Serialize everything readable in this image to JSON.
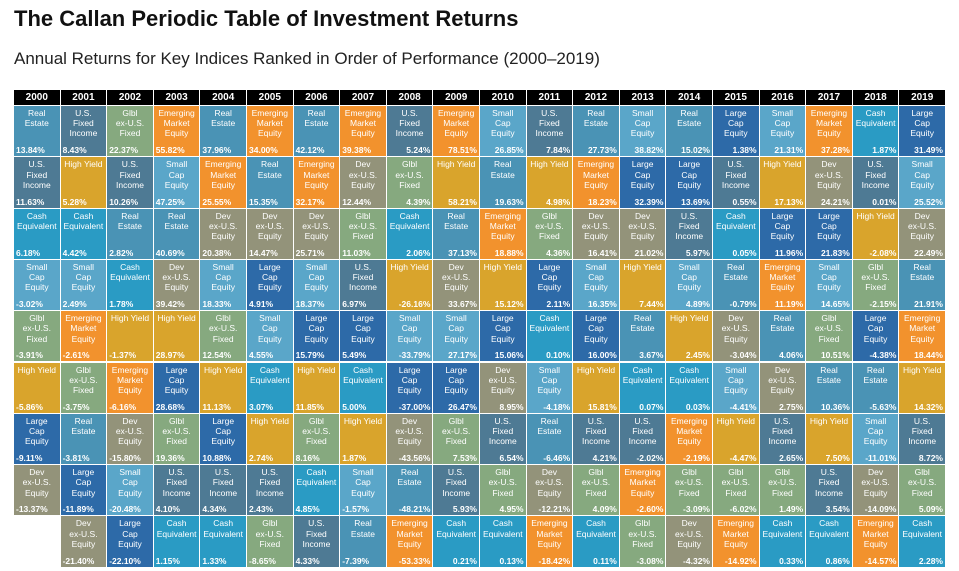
{
  "header": {
    "title": "The Callan Periodic Table of Investment Returns",
    "subtitle": "Annual Returns for Key Indices Ranked in Order of Performance (2000–2019)"
  },
  "asset_classes": {
    "RE": {
      "label": "Real Estate",
      "color": "#4a93b5"
    },
    "USFI": {
      "label": "U.S. Fixed Income",
      "color": "#4e7a94"
    },
    "GFI": {
      "label": "Glbl ex-U.S. Fixed",
      "color": "#86a97f"
    },
    "EM": {
      "label": "Emerging Market Equity",
      "color": "#f2922d"
    },
    "SC": {
      "label": "Small Cap Equity",
      "color": "#5aa6c9"
    },
    "LC": {
      "label": "Large Cap Equity",
      "color": "#2d6aa8"
    },
    "HY": {
      "label": "High Yield",
      "color": "#d9a42c"
    },
    "DX": {
      "label": "Dev ex-U.S. Equity",
      "color": "#93937a"
    },
    "CE": {
      "label": "Cash Equivalent",
      "color": "#2a9bc4"
    }
  },
  "chart_data": {
    "type": "table",
    "title": "The Callan Periodic Table of Investment Returns",
    "subtitle": "Annual Returns for Key Indices Ranked in Order of Performance (2000–2019)",
    "years": [
      "2000",
      "2001",
      "2002",
      "2003",
      "2004",
      "2005",
      "2006",
      "2007",
      "2008",
      "2009",
      "2010",
      "2011",
      "2012",
      "2013",
      "2014",
      "2015",
      "2016",
      "2017",
      "2018",
      "2019"
    ],
    "columns": [
      [
        {
          "a": "RE",
          "r": "13.84%"
        },
        {
          "a": "USFI",
          "r": "11.63%"
        },
        {
          "a": "CE",
          "r": "6.18%"
        },
        {
          "a": "SC",
          "r": "-3.02%"
        },
        {
          "a": "GFI",
          "r": "-3.91%"
        },
        {
          "a": "HY",
          "r": "-5.86%"
        },
        {
          "a": "LC",
          "r": "-9.11%"
        },
        {
          "a": "DX",
          "r": "-13.37%"
        }
      ],
      [
        {
          "a": "USFI",
          "r": "8.43%"
        },
        {
          "a": "HY",
          "r": "5.28%"
        },
        {
          "a": "CE",
          "r": "4.42%"
        },
        {
          "a": "SC",
          "r": "2.49%"
        },
        {
          "a": "EM",
          "r": "-2.61%"
        },
        {
          "a": "GFI",
          "r": "-3.75%"
        },
        {
          "a": "RE",
          "r": "-3.81%"
        },
        {
          "a": "LC",
          "r": "-11.89%"
        },
        {
          "a": "DX",
          "r": "-21.40%"
        }
      ],
      [
        {
          "a": "GFI",
          "r": "22.37%"
        },
        {
          "a": "USFI",
          "r": "10.26%"
        },
        {
          "a": "RE",
          "r": "2.82%"
        },
        {
          "a": "CE",
          "r": "1.78%"
        },
        {
          "a": "HY",
          "r": "-1.37%"
        },
        {
          "a": "EM",
          "r": "-6.16%"
        },
        {
          "a": "DX",
          "r": "-15.80%"
        },
        {
          "a": "SC",
          "r": "-20.48%"
        },
        {
          "a": "LC",
          "r": "-22.10%"
        }
      ],
      [
        {
          "a": "EM",
          "r": "55.82%"
        },
        {
          "a": "SC",
          "r": "47.25%"
        },
        {
          "a": "RE",
          "r": "40.69%"
        },
        {
          "a": "DX",
          "r": "39.42%"
        },
        {
          "a": "HY",
          "r": "28.97%"
        },
        {
          "a": "LC",
          "r": "28.68%"
        },
        {
          "a": "GFI",
          "r": "19.36%"
        },
        {
          "a": "USFI",
          "r": "4.10%"
        },
        {
          "a": "CE",
          "r": "1.15%"
        }
      ],
      [
        {
          "a": "RE",
          "r": "37.96%"
        },
        {
          "a": "EM",
          "r": "25.55%"
        },
        {
          "a": "DX",
          "r": "20.38%"
        },
        {
          "a": "SC",
          "r": "18.33%"
        },
        {
          "a": "GFI",
          "r": "12.54%"
        },
        {
          "a": "HY",
          "r": "11.13%"
        },
        {
          "a": "LC",
          "r": "10.88%"
        },
        {
          "a": "USFI",
          "r": "4.34%"
        },
        {
          "a": "CE",
          "r": "1.33%"
        }
      ],
      [
        {
          "a": "EM",
          "r": "34.00%"
        },
        {
          "a": "RE",
          "r": "15.35%"
        },
        {
          "a": "DX",
          "r": "14.47%"
        },
        {
          "a": "LC",
          "r": "4.91%"
        },
        {
          "a": "SC",
          "r": "4.55%"
        },
        {
          "a": "CE",
          "r": "3.07%"
        },
        {
          "a": "HY",
          "r": "2.74%"
        },
        {
          "a": "USFI",
          "r": "2.43%"
        },
        {
          "a": "GFI",
          "r": "-8.65%"
        }
      ],
      [
        {
          "a": "RE",
          "r": "42.12%"
        },
        {
          "a": "EM",
          "r": "32.17%"
        },
        {
          "a": "DX",
          "r": "25.71%"
        },
        {
          "a": "SC",
          "r": "18.37%"
        },
        {
          "a": "LC",
          "r": "15.79%"
        },
        {
          "a": "HY",
          "r": "11.85%"
        },
        {
          "a": "GFI",
          "r": "8.16%"
        },
        {
          "a": "CE",
          "r": "4.85%"
        },
        {
          "a": "USFI",
          "r": "4.33%"
        }
      ],
      [
        {
          "a": "EM",
          "r": "39.38%"
        },
        {
          "a": "DX",
          "r": "12.44%"
        },
        {
          "a": "GFI",
          "r": "11.03%"
        },
        {
          "a": "USFI",
          "r": "6.97%"
        },
        {
          "a": "LC",
          "r": "5.49%"
        },
        {
          "a": "CE",
          "r": "5.00%"
        },
        {
          "a": "HY",
          "r": "1.87%"
        },
        {
          "a": "SC",
          "r": "-1.57%"
        },
        {
          "a": "RE",
          "r": "-7.39%"
        }
      ],
      [
        {
          "a": "USFI",
          "r": "5.24%"
        },
        {
          "a": "GFI",
          "r": "4.39%"
        },
        {
          "a": "CE",
          "r": "2.06%"
        },
        {
          "a": "HY",
          "r": "-26.16%"
        },
        {
          "a": "SC",
          "r": "-33.79%"
        },
        {
          "a": "LC",
          "r": "-37.00%"
        },
        {
          "a": "DX",
          "r": "-43.56%"
        },
        {
          "a": "RE",
          "r": "-48.21%"
        },
        {
          "a": "EM",
          "r": "-53.33%"
        }
      ],
      [
        {
          "a": "EM",
          "r": "78.51%"
        },
        {
          "a": "HY",
          "r": "58.21%"
        },
        {
          "a": "RE",
          "r": "37.13%"
        },
        {
          "a": "DX",
          "r": "33.67%"
        },
        {
          "a": "SC",
          "r": "27.17%"
        },
        {
          "a": "LC",
          "r": "26.47%"
        },
        {
          "a": "GFI",
          "r": "7.53%"
        },
        {
          "a": "USFI",
          "r": "5.93%"
        },
        {
          "a": "CE",
          "r": "0.21%"
        }
      ],
      [
        {
          "a": "SC",
          "r": "26.85%"
        },
        {
          "a": "RE",
          "r": "19.63%"
        },
        {
          "a": "EM",
          "r": "18.88%"
        },
        {
          "a": "HY",
          "r": "15.12%"
        },
        {
          "a": "LC",
          "r": "15.06%"
        },
        {
          "a": "DX",
          "r": "8.95%"
        },
        {
          "a": "USFI",
          "r": "6.54%"
        },
        {
          "a": "GFI",
          "r": "4.95%"
        },
        {
          "a": "CE",
          "r": "0.13%"
        }
      ],
      [
        {
          "a": "USFI",
          "r": "7.84%"
        },
        {
          "a": "HY",
          "r": "4.98%"
        },
        {
          "a": "GFI",
          "r": "4.36%"
        },
        {
          "a": "LC",
          "r": "2.11%"
        },
        {
          "a": "CE",
          "r": "0.10%"
        },
        {
          "a": "SC",
          "r": "-4.18%"
        },
        {
          "a": "RE",
          "r": "-6.46%"
        },
        {
          "a": "DX",
          "r": "-12.21%"
        },
        {
          "a": "EM",
          "r": "-18.42%"
        }
      ],
      [
        {
          "a": "RE",
          "r": "27.73%"
        },
        {
          "a": "EM",
          "r": "18.23%"
        },
        {
          "a": "DX",
          "r": "16.41%"
        },
        {
          "a": "SC",
          "r": "16.35%"
        },
        {
          "a": "LC",
          "r": "16.00%"
        },
        {
          "a": "HY",
          "r": "15.81%"
        },
        {
          "a": "USFI",
          "r": "4.21%"
        },
        {
          "a": "GFI",
          "r": "4.09%"
        },
        {
          "a": "CE",
          "r": "0.11%"
        }
      ],
      [
        {
          "a": "SC",
          "r": "38.82%"
        },
        {
          "a": "LC",
          "r": "32.39%"
        },
        {
          "a": "DX",
          "r": "21.02%"
        },
        {
          "a": "HY",
          "r": "7.44%"
        },
        {
          "a": "RE",
          "r": "3.67%"
        },
        {
          "a": "CE",
          "r": "0.07%"
        },
        {
          "a": "USFI",
          "r": "-2.02%"
        },
        {
          "a": "EM",
          "r": "-2.60%"
        },
        {
          "a": "GFI",
          "r": "-3.08%"
        }
      ],
      [
        {
          "a": "RE",
          "r": "15.02%"
        },
        {
          "a": "LC",
          "r": "13.69%"
        },
        {
          "a": "USFI",
          "r": "5.97%"
        },
        {
          "a": "SC",
          "r": "4.89%"
        },
        {
          "a": "HY",
          "r": "2.45%"
        },
        {
          "a": "CE",
          "r": "0.03%"
        },
        {
          "a": "EM",
          "r": "-2.19%"
        },
        {
          "a": "GFI",
          "r": "-3.09%"
        },
        {
          "a": "DX",
          "r": "-4.32%"
        }
      ],
      [
        {
          "a": "LC",
          "r": "1.38%"
        },
        {
          "a": "USFI",
          "r": "0.55%"
        },
        {
          "a": "CE",
          "r": "0.05%"
        },
        {
          "a": "RE",
          "r": "-0.79%"
        },
        {
          "a": "DX",
          "r": "-3.04%"
        },
        {
          "a": "SC",
          "r": "-4.41%"
        },
        {
          "a": "HY",
          "r": "-4.47%"
        },
        {
          "a": "GFI",
          "r": "-6.02%"
        },
        {
          "a": "EM",
          "r": "-14.92%"
        }
      ],
      [
        {
          "a": "SC",
          "r": "21.31%"
        },
        {
          "a": "HY",
          "r": "17.13%"
        },
        {
          "a": "LC",
          "r": "11.96%"
        },
        {
          "a": "EM",
          "r": "11.19%"
        },
        {
          "a": "RE",
          "r": "4.06%"
        },
        {
          "a": "DX",
          "r": "2.75%"
        },
        {
          "a": "USFI",
          "r": "2.65%"
        },
        {
          "a": "GFI",
          "r": "1.49%"
        },
        {
          "a": "CE",
          "r": "0.33%"
        }
      ],
      [
        {
          "a": "EM",
          "r": "37.28%"
        },
        {
          "a": "DX",
          "r": "24.21%"
        },
        {
          "a": "LC",
          "r": "21.83%"
        },
        {
          "a": "SC",
          "r": "14.65%"
        },
        {
          "a": "GFI",
          "r": "10.51%"
        },
        {
          "a": "RE",
          "r": "10.36%"
        },
        {
          "a": "HY",
          "r": "7.50%"
        },
        {
          "a": "USFI",
          "r": "3.54%"
        },
        {
          "a": "CE",
          "r": "0.86%"
        }
      ],
      [
        {
          "a": "CE",
          "r": "1.87%"
        },
        {
          "a": "USFI",
          "r": "0.01%"
        },
        {
          "a": "HY",
          "r": "-2.08%"
        },
        {
          "a": "GFI",
          "r": "-2.15%"
        },
        {
          "a": "LC",
          "r": "-4.38%"
        },
        {
          "a": "RE",
          "r": "-5.63%"
        },
        {
          "a": "SC",
          "r": "-11.01%"
        },
        {
          "a": "DX",
          "r": "-14.09%"
        },
        {
          "a": "EM",
          "r": "-14.57%"
        }
      ],
      [
        {
          "a": "LC",
          "r": "31.49%"
        },
        {
          "a": "SC",
          "r": "25.52%"
        },
        {
          "a": "DX",
          "r": "22.49%"
        },
        {
          "a": "RE",
          "r": "21.91%"
        },
        {
          "a": "EM",
          "r": "18.44%"
        },
        {
          "a": "HY",
          "r": "14.32%"
        },
        {
          "a": "USFI",
          "r": "8.72%"
        },
        {
          "a": "GFI",
          "r": "5.09%"
        },
        {
          "a": "CE",
          "r": "2.28%"
        }
      ]
    ]
  }
}
